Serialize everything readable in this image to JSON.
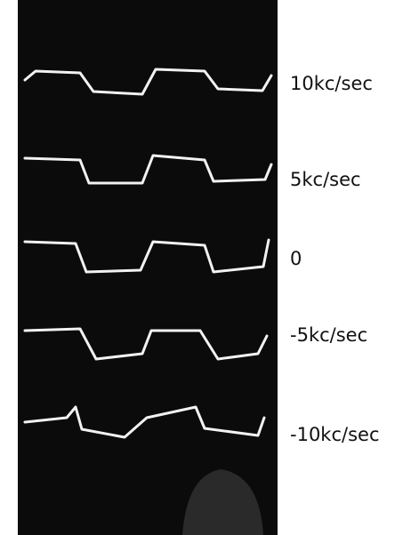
{
  "traces": [
    {
      "label": "10kc/sec"
    },
    {
      "label": "5kc/sec"
    },
    {
      "label": "0"
    },
    {
      "label": "-5kc/sec"
    },
    {
      "label": "-10kc/sec"
    }
  ]
}
